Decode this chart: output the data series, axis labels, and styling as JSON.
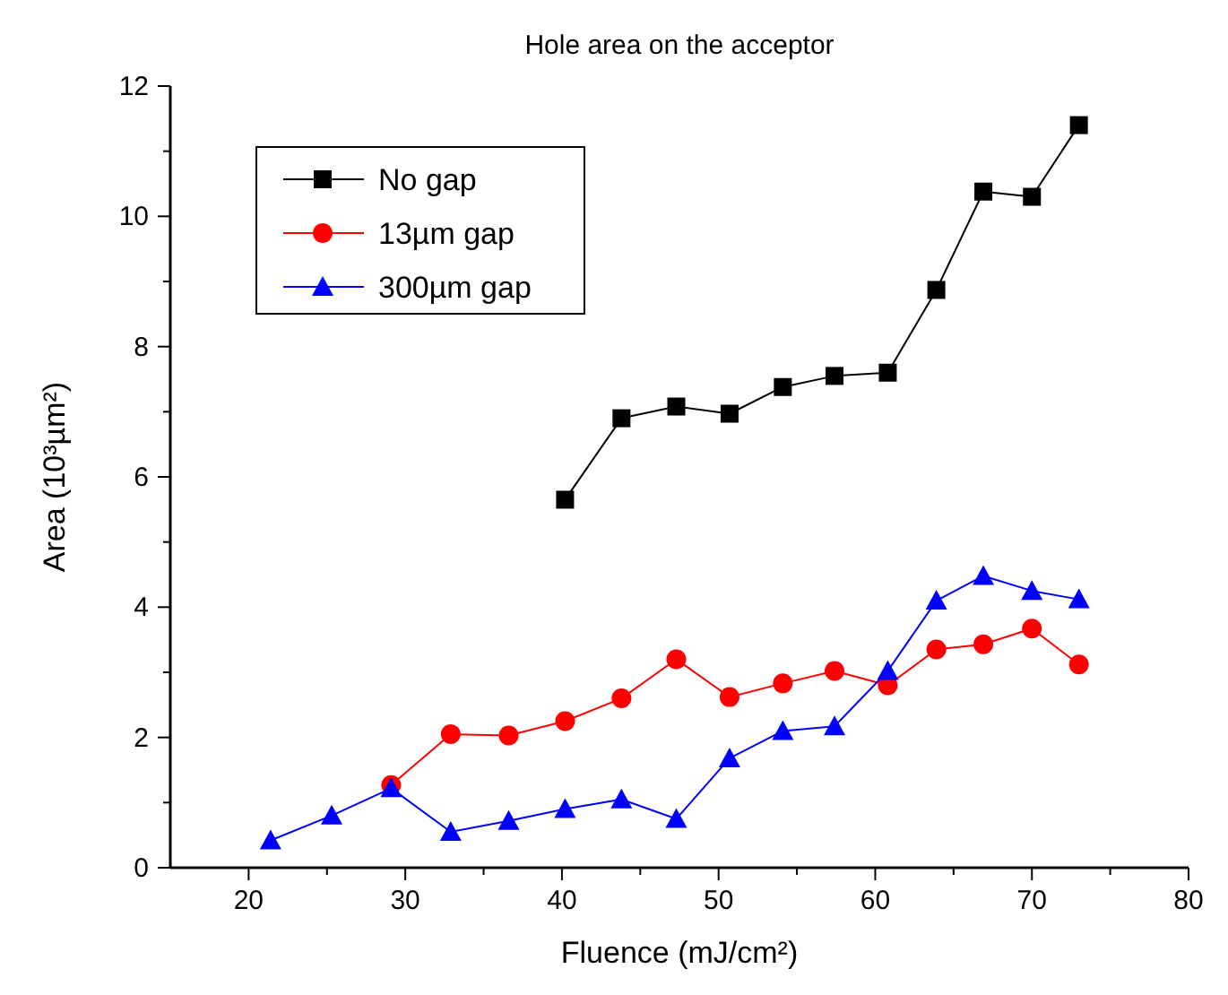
{
  "chart_data": {
    "type": "line",
    "title": "Hole area on the acceptor",
    "xlabel": "Fluence (mJ/cm²)",
    "ylabel": "Area (10³µm²)",
    "xlim": [
      15,
      80
    ],
    "ylim": [
      0,
      12
    ],
    "xticks": [
      20,
      {
        "value": 25,
        "label": null
      },
      30,
      {
        "value": 35,
        "label": null
      },
      40,
      {
        "value": 45,
        "label": null
      },
      50,
      {
        "value": 55,
        "label": null
      },
      60,
      {
        "value": 65,
        "label": null
      },
      70,
      {
        "value": 75,
        "label": null
      },
      80
    ],
    "yticks": [
      0,
      {
        "value": 1,
        "label": null
      },
      2,
      {
        "value": 3,
        "label": null
      },
      4,
      {
        "value": 5,
        "label": null
      },
      6,
      {
        "value": 7,
        "label": null
      },
      8,
      {
        "value": 9,
        "label": null
      },
      10,
      {
        "value": 11,
        "label": null
      },
      12
    ],
    "grid": false,
    "legend": "top left",
    "line_style": "solid",
    "series": [
      {
        "name": "No gap",
        "color": "#000000",
        "marker": "square",
        "x": [
          40.2,
          43.8,
          47.3,
          50.7,
          54.1,
          57.4,
          60.8,
          63.9,
          66.9,
          70.0,
          73.0
        ],
        "values": [
          5.65,
          6.9,
          7.08,
          6.97,
          7.38,
          7.55,
          7.6,
          8.87,
          10.38,
          10.3,
          11.4
        ]
      },
      {
        "name": "13µm gap",
        "color": "#ff0000",
        "marker": "circle",
        "x": [
          29.1,
          32.9,
          36.6,
          40.2,
          43.8,
          47.3,
          50.7,
          54.1,
          57.4,
          60.8,
          63.9,
          66.9,
          70.0,
          73.0
        ],
        "values": [
          1.27,
          2.05,
          2.03,
          2.25,
          2.6,
          3.2,
          2.62,
          2.83,
          3.02,
          2.8,
          3.35,
          3.43,
          3.67,
          3.12
        ]
      },
      {
        "name": "300µm gap",
        "color": "#0000ff",
        "marker": "triangle",
        "x": [
          21.4,
          25.3,
          29.1,
          32.9,
          36.6,
          40.2,
          43.8,
          47.3,
          50.7,
          54.1,
          57.4,
          60.8,
          63.9,
          66.9,
          70.0,
          73.0
        ],
        "values": [
          0.42,
          0.8,
          1.22,
          0.55,
          0.72,
          0.9,
          1.05,
          0.75,
          1.68,
          2.1,
          2.17,
          3.02,
          4.1,
          4.48,
          4.25,
          4.12
        ]
      }
    ]
  }
}
